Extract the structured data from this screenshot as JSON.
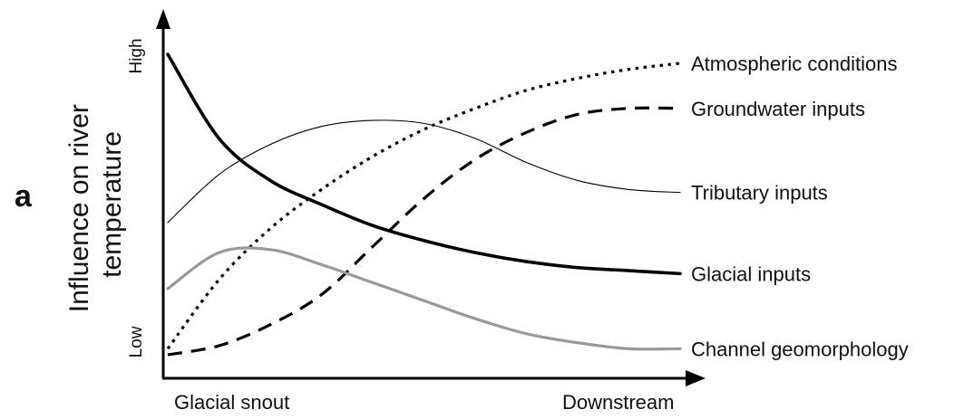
{
  "panel_label": "a",
  "chart_data": {
    "type": "line",
    "ylabel": [
      "Influence on river",
      "temperature"
    ],
    "y_levels": {
      "low": "Low",
      "high": "High"
    },
    "x_ticks": {
      "start": "Glacial snout",
      "end": "Downstream"
    },
    "x": [
      0.0,
      0.1,
      0.2,
      0.3,
      0.4,
      0.5,
      0.6,
      0.7,
      0.8,
      0.9,
      1.0
    ],
    "ylim": [
      0,
      1
    ],
    "xlim": [
      0,
      1
    ],
    "grid": false,
    "legend": "direct labels at right end of each line",
    "series": [
      {
        "name": "Atmospheric conditions",
        "style": "dotted",
        "color": "#000000",
        "values": [
          0.02,
          0.25,
          0.42,
          0.55,
          0.66,
          0.75,
          0.82,
          0.88,
          0.92,
          0.95,
          0.97
        ]
      },
      {
        "name": "Groundwater inputs",
        "style": "dashed",
        "color": "#000000",
        "values": [
          0.0,
          0.03,
          0.1,
          0.2,
          0.36,
          0.52,
          0.65,
          0.74,
          0.8,
          0.82,
          0.82
        ]
      },
      {
        "name": "Tributary inputs",
        "style": "thin",
        "color": "#000000",
        "values": [
          0.44,
          0.6,
          0.7,
          0.76,
          0.78,
          0.77,
          0.72,
          0.64,
          0.58,
          0.55,
          0.54
        ]
      },
      {
        "name": "Glacial inputs",
        "style": "thick",
        "color": "#000000",
        "values": [
          1.0,
          0.72,
          0.58,
          0.5,
          0.43,
          0.38,
          0.34,
          0.31,
          0.29,
          0.28,
          0.27
        ]
      },
      {
        "name": "Channel geomorphology",
        "style": "grey",
        "color": "#999999",
        "values": [
          0.22,
          0.34,
          0.35,
          0.3,
          0.24,
          0.18,
          0.12,
          0.07,
          0.04,
          0.02,
          0.02
        ]
      }
    ]
  }
}
